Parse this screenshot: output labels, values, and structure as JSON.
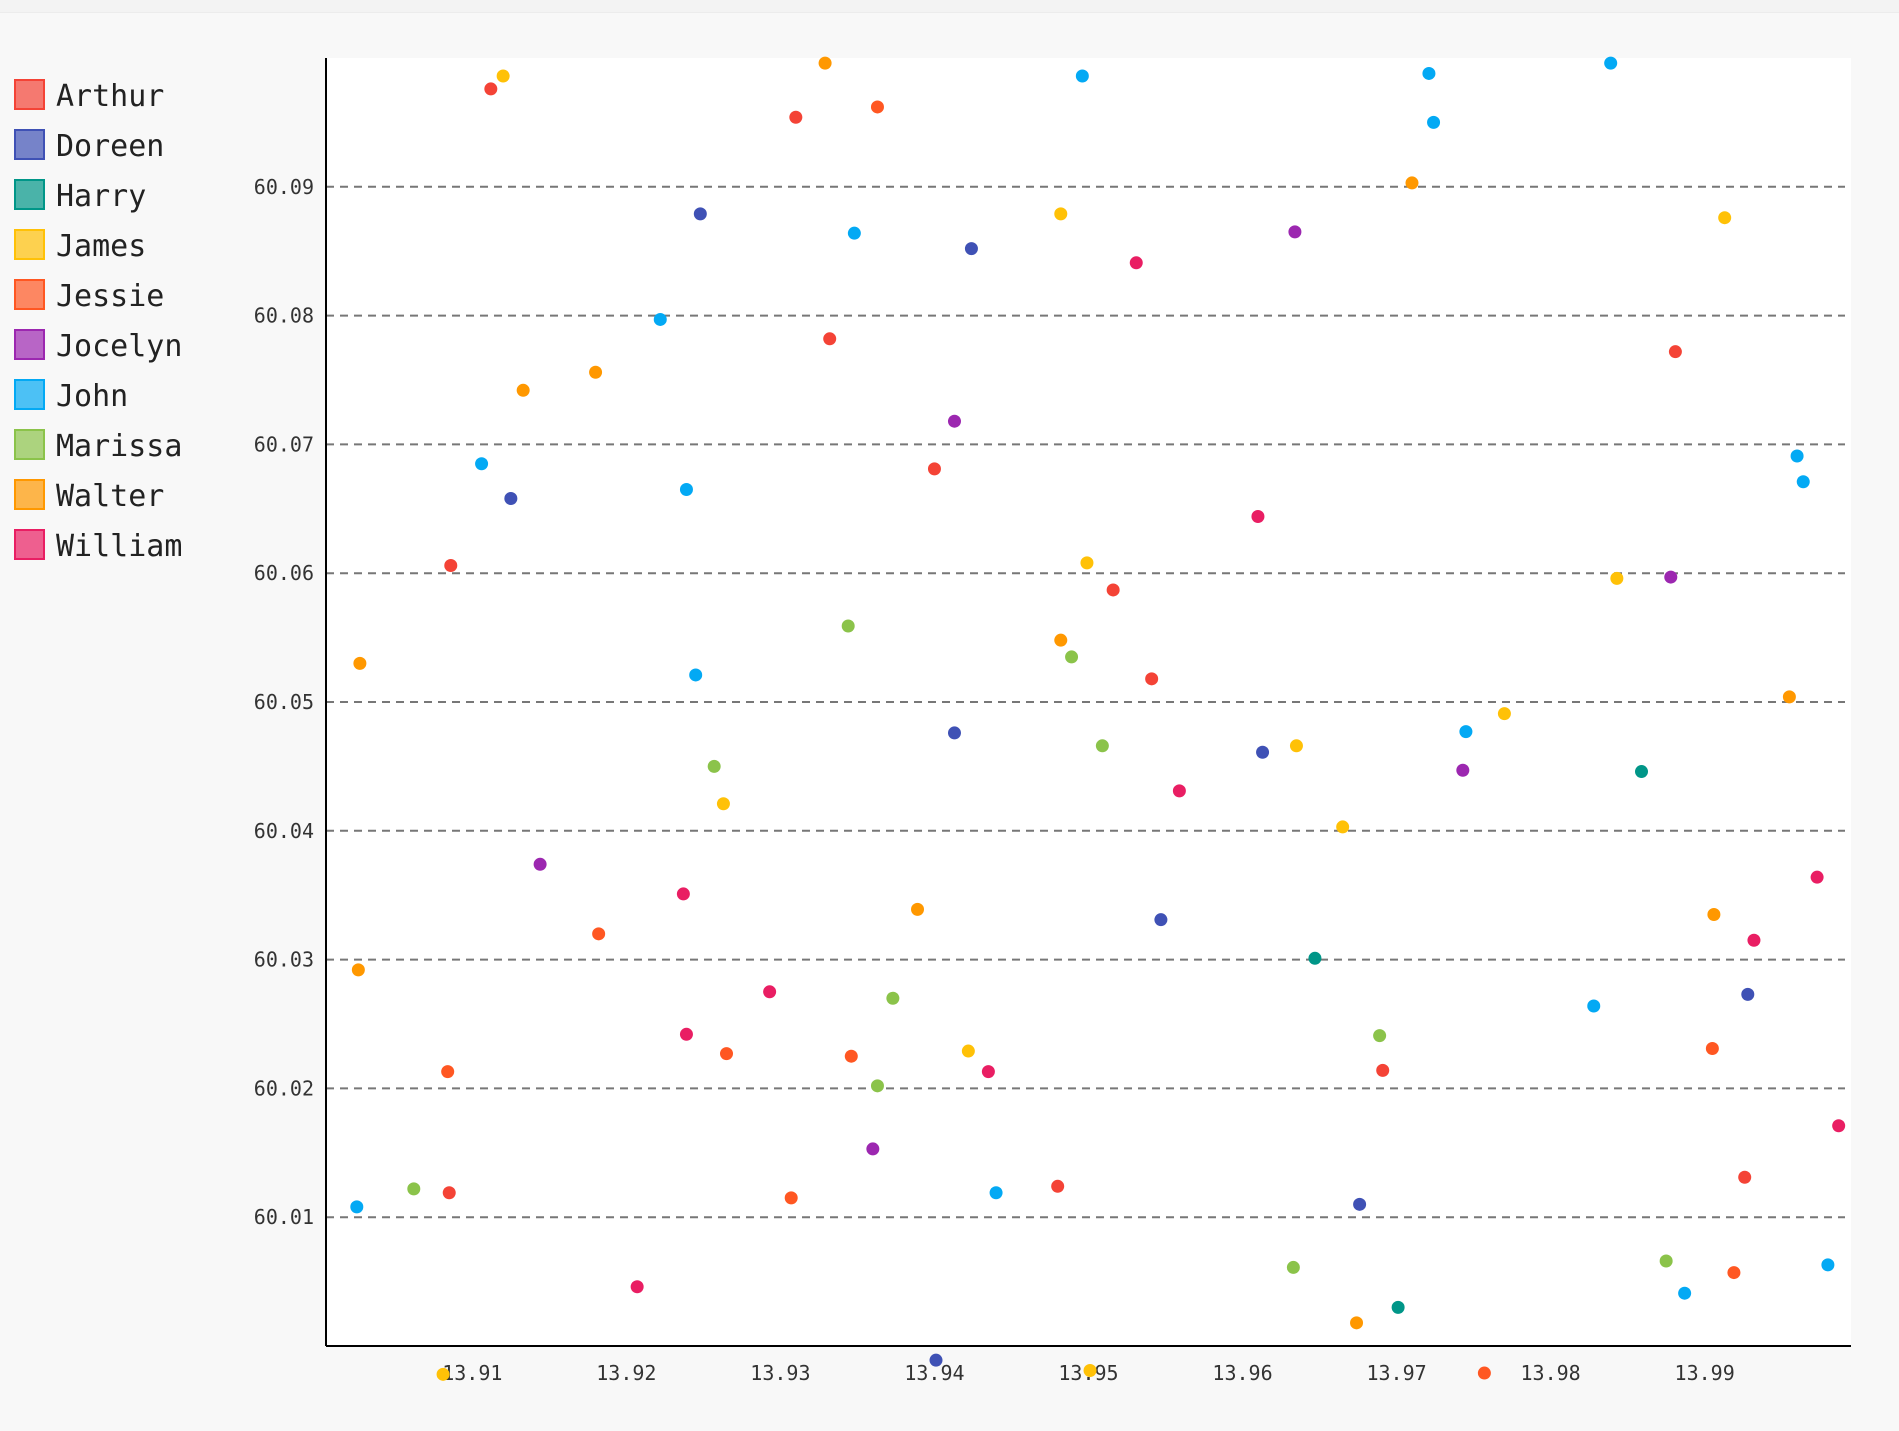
{
  "chart_data": {
    "type": "scatter",
    "title": "",
    "xlabel": "",
    "ylabel": "",
    "xlim": [
      13.9005,
      13.9995
    ],
    "ylim": [
      60.0,
      60.1
    ],
    "xticks": [
      "13.91",
      "13.92",
      "13.93",
      "13.94",
      "13.95",
      "13.96",
      "13.97",
      "13.98",
      "13.99"
    ],
    "yticks": [
      "60.01",
      "60.02",
      "60.03",
      "60.04",
      "60.05",
      "60.06",
      "60.07",
      "60.08",
      "60.09"
    ],
    "grid": "horizontal-dashed",
    "legend_position": "left",
    "series": [
      {
        "name": "Arthur",
        "color": "#f44336",
        "points": [
          [
            13.9112,
            60.0976
          ],
          [
            13.931,
            60.0954
          ],
          [
            13.9332,
            60.0782
          ],
          [
            13.94,
            60.0681
          ],
          [
            13.9086,
            60.0606
          ],
          [
            13.9516,
            60.0587
          ],
          [
            13.9541,
            60.0518
          ],
          [
            13.948,
            60.0124
          ],
          [
            13.9085,
            60.0119
          ],
          [
            13.9691,
            60.0214
          ],
          [
            13.9881,
            60.0772
          ],
          [
            13.9926,
            60.0131
          ]
        ]
      },
      {
        "name": "Doreen",
        "color": "#3f51b5",
        "points": [
          [
            13.9248,
            60.0879
          ],
          [
            13.9125,
            60.0658
          ],
          [
            13.9424,
            60.0852
          ],
          [
            13.9413,
            60.0476
          ],
          [
            13.9547,
            60.0331
          ],
          [
            13.9613,
            60.0461
          ],
          [
            13.9401,
            59.9989
          ],
          [
            13.9676,
            60.011
          ],
          [
            13.9928,
            60.0273
          ]
        ]
      },
      {
        "name": "Harry",
        "color": "#009688",
        "points": [
          [
            13.9647,
            60.0301
          ],
          [
            13.9701,
            60.003
          ],
          [
            13.9859,
            60.0446
          ]
        ]
      },
      {
        "name": "James",
        "color": "#ffc107",
        "points": [
          [
            13.912,
            60.0986
          ],
          [
            13.9482,
            60.0879
          ],
          [
            13.9499,
            60.0608
          ],
          [
            13.9263,
            60.0421
          ],
          [
            13.9635,
            60.0466
          ],
          [
            13.9665,
            60.0403
          ],
          [
            13.9422,
            60.0229
          ],
          [
            13.9081,
            59.9978
          ],
          [
            13.9501,
            59.9981
          ],
          [
            13.977,
            60.0491
          ],
          [
            13.9843,
            60.0596
          ],
          [
            13.9913,
            60.0876
          ]
        ]
      },
      {
        "name": "Jessie",
        "color": "#ff5722",
        "points": [
          [
            13.9363,
            60.0962
          ],
          [
            13.9182,
            60.032
          ],
          [
            13.9265,
            60.0227
          ],
          [
            13.9346,
            60.0225
          ],
          [
            13.9084,
            60.0213
          ],
          [
            13.9307,
            60.0115
          ],
          [
            13.9757,
            59.9979
          ],
          [
            13.9905,
            60.0231
          ],
          [
            13.9919,
            60.0057
          ]
        ]
      },
      {
        "name": "Jocelyn",
        "color": "#9c27b0",
        "points": [
          [
            13.9413,
            60.0718
          ],
          [
            13.9634,
            60.0865
          ],
          [
            13.9144,
            60.0374
          ],
          [
            13.936,
            60.0153
          ],
          [
            13.9743,
            60.0447
          ],
          [
            13.9878,
            60.0597
          ]
        ]
      },
      {
        "name": "John",
        "color": "#03a9f4",
        "points": [
          [
            13.9496,
            60.0986
          ],
          [
            13.9348,
            60.0864
          ],
          [
            13.9222,
            60.0797
          ],
          [
            13.9106,
            60.0685
          ],
          [
            13.9239,
            60.0665
          ],
          [
            13.9245,
            60.0521
          ],
          [
            13.9721,
            60.0988
          ],
          [
            13.9724,
            60.095
          ],
          [
            13.9839,
            60.0996
          ],
          [
            13.9745,
            60.0477
          ],
          [
            13.9828,
            60.0264
          ],
          [
            13.996,
            60.0691
          ],
          [
            13.9964,
            60.0671
          ],
          [
            13.9025,
            60.0108
          ],
          [
            13.944,
            60.0119
          ],
          [
            13.9887,
            60.0041
          ],
          [
            13.998,
            60.0063
          ]
        ]
      },
      {
        "name": "Marissa",
        "color": "#8bc34a",
        "points": [
          [
            13.9344,
            60.0559
          ],
          [
            13.9489,
            60.0535
          ],
          [
            13.9257,
            60.045
          ],
          [
            13.9509,
            60.0466
          ],
          [
            13.9373,
            60.027
          ],
          [
            13.9363,
            60.0202
          ],
          [
            13.9062,
            60.0122
          ],
          [
            13.9633,
            60.0061
          ],
          [
            13.9689,
            60.0241
          ],
          [
            13.9875,
            60.0066
          ]
        ]
      },
      {
        "name": "Walter",
        "color": "#ff9800",
        "points": [
          [
            13.9329,
            60.0996
          ],
          [
            13.9133,
            60.0742
          ],
          [
            13.918,
            60.0756
          ],
          [
            13.9027,
            60.053
          ],
          [
            13.9026,
            60.0292
          ],
          [
            13.9389,
            60.0339
          ],
          [
            13.9482,
            60.0548
          ],
          [
            13.971,
            60.0903
          ],
          [
            13.9674,
            60.0018
          ],
          [
            13.9906,
            60.0335
          ],
          [
            13.9955,
            60.0504
          ]
        ]
      },
      {
        "name": "William",
        "color": "#e91e63",
        "points": [
          [
            13.9531,
            60.0841
          ],
          [
            13.961,
            60.0644
          ],
          [
            13.9559,
            60.0431
          ],
          [
            13.9237,
            60.0351
          ],
          [
            13.9293,
            60.0275
          ],
          [
            13.9239,
            60.0242
          ],
          [
            13.9435,
            60.0213
          ],
          [
            13.9207,
            60.0046
          ],
          [
            13.9932,
            60.0315
          ],
          [
            13.9973,
            60.0364
          ],
          [
            13.9987,
            60.0171
          ]
        ]
      }
    ]
  }
}
